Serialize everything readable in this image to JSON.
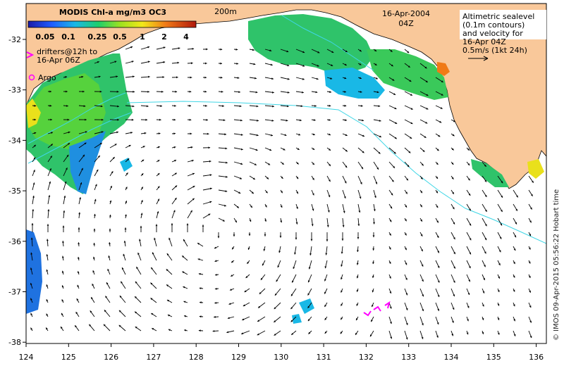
{
  "map": {
    "colorbar": {
      "title": "MODIS Chl-a mg/m3 OC3",
      "ticks": [
        "0.05",
        "0.1",
        "0.25",
        "0.5",
        "1",
        "2",
        "4"
      ]
    },
    "isobath_label": "200m",
    "date": "16-Apr-2004",
    "time": "04Z",
    "legend_right": [
      "Altimetric sealevel",
      "(0.1m contours)",
      "and velocity for",
      "16-Apr 04Z",
      "0.5m/s (1kt 24h)"
    ],
    "legend_left": {
      "drifters": [
        "drifters@12h to",
        "16-Apr 06Z"
      ],
      "argo": "Argo"
    },
    "x_ticks": [
      "124",
      "125",
      "126",
      "127",
      "128",
      "129",
      "130",
      "131",
      "132",
      "133",
      "134",
      "135",
      "136"
    ],
    "y_ticks": [
      "-32",
      "-33",
      "-34",
      "-35",
      "-36",
      "-37",
      "-38"
    ],
    "credit": "© IMOS 09-Apr-2015 05:56:22 Hobart time",
    "colors": {
      "land": "#f9c89a",
      "contour": "#3fd6e6",
      "drifter": "#ff00ff",
      "arrow": "#000000"
    }
  }
}
